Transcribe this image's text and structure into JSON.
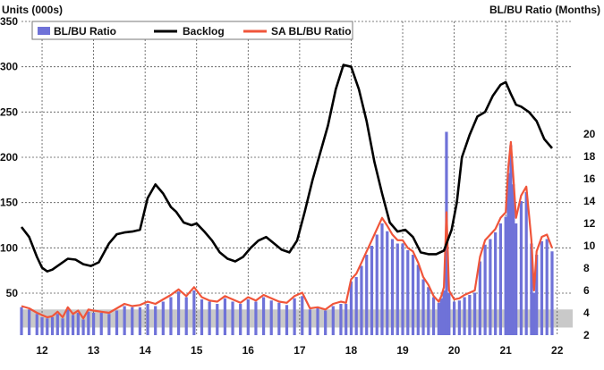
{
  "chart_data": {
    "type": "bar+line",
    "left_axis_title": "Units (000s)",
    "right_axis_title": "BL/BU Ratio (Months)",
    "left_axis": {
      "ylim": [
        0,
        350
      ],
      "ticks": [
        50,
        100,
        150,
        200,
        250,
        300,
        350
      ],
      "tick_labels": [
        "50",
        "100",
        "150",
        "200",
        "250",
        "300",
        "350"
      ]
    },
    "right_axis": {
      "ylim": [
        2,
        20
      ],
      "ticks": [
        2,
        4,
        6,
        8,
        10,
        12,
        14,
        16,
        18,
        20
      ],
      "tick_labels": [
        "2",
        "4",
        "6",
        "8",
        "10",
        "12",
        "14",
        "16",
        "18",
        "20"
      ]
    },
    "x_axis": {
      "xlim": [
        2011.6,
        2022.3
      ],
      "ticks": [
        2012,
        2013,
        2014,
        2015,
        2016,
        2017,
        2018,
        2019,
        2020,
        2021,
        2022
      ],
      "tick_labels": [
        "12",
        "13",
        "14",
        "15",
        "16",
        "17",
        "18",
        "19",
        "20",
        "21",
        "22"
      ]
    },
    "grid": true,
    "shaded_band": [
      12,
      32
    ],
    "legend": {
      "placement": "top-left",
      "entries": [
        "BL/BU Ratio",
        "Backlog",
        "SA BL/BU Ratio"
      ]
    },
    "colors": {
      "bars": "#6f72d8",
      "backlog": "#000000",
      "sa_ratio": "#f0553a",
      "band": "#c9c9c9",
      "grid": "#555555"
    },
    "backlog_series": {
      "name": "Backlog",
      "axis": "left",
      "x": [
        2011.6,
        2011.75,
        2011.9,
        2012.0,
        2012.1,
        2012.2,
        2012.35,
        2012.5,
        2012.65,
        2012.8,
        2012.95,
        2013.1,
        2013.3,
        2013.45,
        2013.6,
        2013.75,
        2013.9,
        2014.05,
        2014.2,
        2014.35,
        2014.5,
        2014.6,
        2014.75,
        2014.9,
        2015.0,
        2015.15,
        2015.3,
        2015.45,
        2015.6,
        2015.75,
        2015.9,
        2016.05,
        2016.2,
        2016.35,
        2016.5,
        2016.65,
        2016.8,
        2016.95,
        2017.1,
        2017.25,
        2017.4,
        2017.55,
        2017.7,
        2017.85,
        2018.0,
        2018.15,
        2018.3,
        2018.45,
        2018.6,
        2018.75,
        2018.9,
        2019.05,
        2019.2,
        2019.35,
        2019.5,
        2019.65,
        2019.8,
        2019.95,
        2020.05,
        2020.15,
        2020.3,
        2020.45,
        2020.6,
        2020.75,
        2020.9,
        2021.0,
        2021.1,
        2021.2,
        2021.3,
        2021.45,
        2021.6,
        2021.75,
        2021.9
      ],
      "values": [
        123,
        112,
        90,
        78,
        74,
        76,
        82,
        88,
        87,
        82,
        80,
        84,
        105,
        115,
        117,
        118,
        120,
        155,
        170,
        160,
        145,
        140,
        128,
        125,
        127,
        118,
        108,
        95,
        88,
        85,
        90,
        100,
        108,
        112,
        105,
        98,
        95,
        108,
        140,
        175,
        205,
        235,
        275,
        302,
        300,
        275,
        240,
        195,
        160,
        128,
        118,
        120,
        112,
        95,
        93,
        93,
        97,
        120,
        150,
        200,
        225,
        245,
        250,
        268,
        280,
        283,
        270,
        258,
        256,
        250,
        240,
        220,
        210
      ]
    },
    "sa_series": {
      "name": "SA BL/BU Ratio",
      "axis": "right",
      "x": [
        2011.6,
        2011.75,
        2011.9,
        2012.0,
        2012.1,
        2012.2,
        2012.3,
        2012.4,
        2012.5,
        2012.6,
        2012.7,
        2012.8,
        2012.9,
        2013.0,
        2013.15,
        2013.3,
        2013.45,
        2013.6,
        2013.75,
        2013.9,
        2014.05,
        2014.2,
        2014.35,
        2014.5,
        2014.65,
        2014.8,
        2014.95,
        2015.1,
        2015.25,
        2015.4,
        2015.55,
        2015.7,
        2015.85,
        2016.0,
        2016.15,
        2016.3,
        2016.45,
        2016.6,
        2016.75,
        2016.9,
        2017.05,
        2017.2,
        2017.35,
        2017.5,
        2017.65,
        2017.8,
        2017.9,
        2018.0,
        2018.1,
        2018.2,
        2018.3,
        2018.4,
        2018.5,
        2018.6,
        2018.7,
        2018.8,
        2018.9,
        2019.0,
        2019.1,
        2019.2,
        2019.3,
        2019.4,
        2019.5,
        2019.6,
        2019.7,
        2019.75,
        2019.8,
        2019.85,
        2019.9,
        2020.0,
        2020.1,
        2020.2,
        2020.3,
        2020.4,
        2020.5,
        2020.6,
        2020.7,
        2020.8,
        2020.9,
        2021.0,
        2021.05,
        2021.1,
        2021.15,
        2021.2,
        2021.3,
        2021.4,
        2021.5,
        2021.55,
        2021.6,
        2021.7,
        2021.8,
        2021.9
      ],
      "values": [
        4.6,
        4.4,
        4.0,
        3.8,
        3.6,
        3.7,
        4.1,
        3.6,
        4.5,
        3.9,
        4.2,
        3.5,
        4.3,
        4.2,
        4.1,
        4.0,
        4.4,
        4.8,
        4.6,
        4.7,
        5.0,
        4.8,
        5.2,
        5.6,
        6.1,
        5.5,
        6.3,
        5.4,
        5.1,
        5.0,
        5.5,
        5.2,
        4.9,
        5.4,
        5.1,
        5.6,
        5.3,
        5.0,
        4.9,
        5.5,
        5.8,
        4.4,
        4.5,
        4.3,
        4.8,
        5.0,
        4.9,
        7.0,
        7.5,
        8.5,
        9.5,
        10.5,
        11.5,
        12.5,
        11.8,
        11.0,
        10.5,
        10.5,
        9.8,
        9.5,
        8.5,
        7.2,
        6.5,
        5.5,
        5.0,
        5.5,
        6.3,
        13.0,
        6.0,
        5.2,
        5.3,
        5.6,
        5.8,
        6.0,
        9.0,
        10.5,
        11.0,
        11.5,
        12.5,
        13.0,
        17.0,
        19.3,
        16.0,
        12.5,
        14.5,
        15.3,
        10.5,
        6.0,
        9.5,
        10.8,
        11.0,
        9.8
      ]
    },
    "bar_series": {
      "name": "BL/BU Ratio",
      "axis": "right",
      "x": [
        2011.6,
        2011.75,
        2011.9,
        2012.0,
        2012.1,
        2012.2,
        2012.3,
        2012.4,
        2012.5,
        2012.6,
        2012.7,
        2012.8,
        2012.9,
        2013.0,
        2013.15,
        2013.3,
        2013.45,
        2013.6,
        2013.75,
        2013.9,
        2014.05,
        2014.2,
        2014.35,
        2014.5,
        2014.65,
        2014.8,
        2014.95,
        2015.1,
        2015.25,
        2015.4,
        2015.55,
        2015.7,
        2015.85,
        2016.0,
        2016.15,
        2016.3,
        2016.45,
        2016.6,
        2016.75,
        2016.9,
        2017.05,
        2017.2,
        2017.35,
        2017.5,
        2017.65,
        2017.8,
        2017.9,
        2018.0,
        2018.1,
        2018.2,
        2018.3,
        2018.4,
        2018.5,
        2018.6,
        2018.7,
        2018.8,
        2018.9,
        2019.0,
        2019.1,
        2019.2,
        2019.3,
        2019.4,
        2019.5,
        2019.6,
        2019.7,
        2019.75,
        2019.8,
        2019.85,
        2019.9,
        2020.0,
        2020.1,
        2020.2,
        2020.3,
        2020.4,
        2020.5,
        2020.6,
        2020.7,
        2020.8,
        2020.9,
        2021.0,
        2021.05,
        2021.1,
        2021.15,
        2021.2,
        2021.3,
        2021.4,
        2021.5,
        2021.55,
        2021.6,
        2021.7,
        2021.8,
        2021.9
      ],
      "values": [
        4.5,
        4.3,
        3.9,
        3.6,
        3.5,
        3.6,
        3.9,
        3.5,
        4.3,
        3.8,
        4.0,
        3.4,
        4.1,
        4.0,
        4.0,
        3.9,
        4.2,
        4.6,
        4.5,
        4.5,
        4.8,
        4.6,
        5.0,
        5.4,
        5.9,
        5.4,
        6.0,
        5.2,
        5.0,
        4.8,
        5.3,
        5.0,
        4.8,
        5.2,
        5.0,
        5.4,
        5.1,
        4.9,
        4.7,
        5.3,
        5.5,
        4.3,
        4.4,
        4.2,
        4.6,
        4.8,
        4.8,
        6.8,
        7.2,
        8.2,
        9.2,
        10.0,
        11.0,
        12.0,
        11.3,
        10.6,
        10.2,
        10.2,
        9.6,
        9.2,
        8.3,
        7.0,
        6.3,
        5.4,
        4.9,
        5.3,
        6.0,
        20.2,
        5.8,
        5.0,
        5.1,
        5.4,
        5.6,
        5.8,
        8.6,
        10.1,
        10.6,
        11.2,
        12.0,
        12.6,
        16.5,
        19.0,
        15.5,
        12.0,
        14.0,
        14.8,
        10.2,
        5.8,
        9.2,
        10.4,
        10.6,
        9.5
      ]
    }
  }
}
